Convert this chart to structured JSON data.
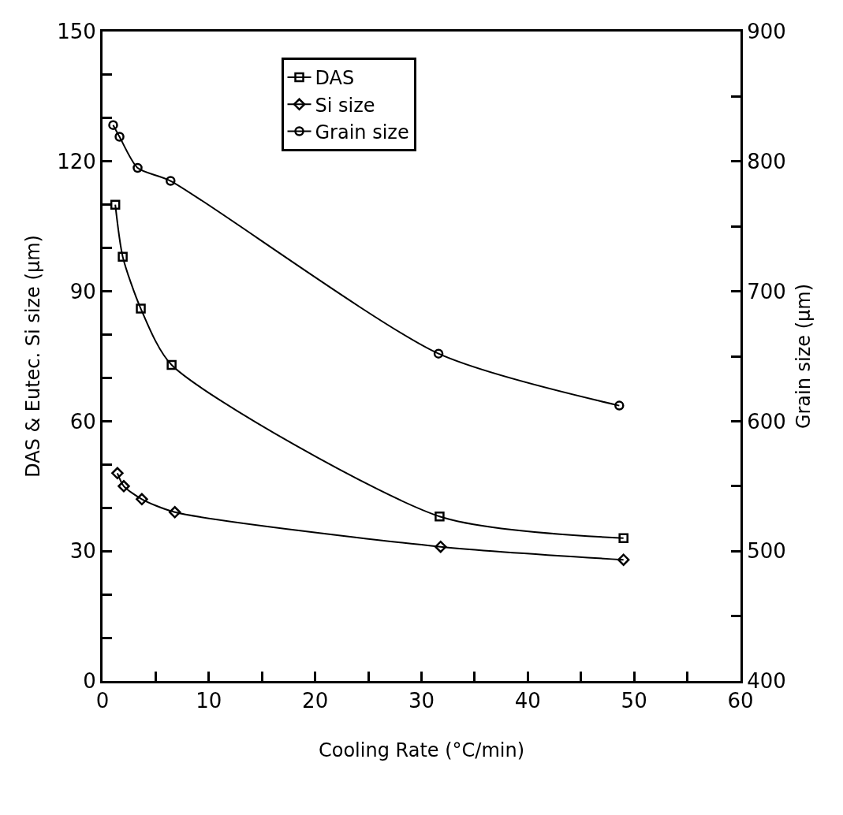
{
  "chart_data": {
    "type": "line",
    "xlabel": "Cooling Rate (°C/min)",
    "ylabel": "DAS & Eutec. Si size (μm)",
    "y2label": "Grain size (μm)",
    "xlim": [
      0,
      60
    ],
    "xticks": [
      0,
      {
        "value": 5,
        "label": null
      },
      10,
      {
        "value": 15,
        "label": null
      },
      20,
      {
        "value": 25,
        "label": null
      },
      30,
      {
        "value": 35,
        "label": null
      },
      40,
      {
        "value": 45,
        "label": null
      },
      50,
      {
        "value": 55,
        "label": null
      },
      60
    ],
    "ylim": [
      0,
      150
    ],
    "yticks": [
      0,
      {
        "value": 10,
        "label": null
      },
      {
        "value": 20,
        "label": null
      },
      30,
      {
        "value": 40,
        "label": null
      },
      {
        "value": 50,
        "label": null
      },
      60,
      {
        "value": 70,
        "label": null
      },
      {
        "value": 80,
        "label": null
      },
      90,
      {
        "value": 100,
        "label": null
      },
      {
        "value": 110,
        "label": null
      },
      120,
      {
        "value": 130,
        "label": null
      },
      {
        "value": 140,
        "label": null
      },
      150
    ],
    "y2lim": [
      400,
      900
    ],
    "y2ticks": [
      400,
      {
        "value": 450,
        "label": null
      },
      500,
      {
        "value": 550,
        "label": null
      },
      600,
      {
        "value": 650,
        "label": null
      },
      700,
      {
        "value": 750,
        "label": null
      },
      800,
      {
        "value": 850,
        "label": null
      },
      900
    ],
    "legend": "top",
    "line_style": "solid",
    "series": [
      {
        "name": "DAS",
        "color": "#000000",
        "marker": "square",
        "x": [
          1.2,
          1.9,
          3.6,
          6.5,
          31.7,
          49.0
        ],
        "values": [
          110,
          98,
          86,
          73,
          38,
          33
        ]
      },
      {
        "name": "Si size",
        "color": "#000000",
        "marker": "diamond",
        "x": [
          1.4,
          2.0,
          3.7,
          6.8,
          31.8,
          49.0
        ],
        "values": [
          48,
          45,
          42,
          39,
          31,
          28
        ]
      },
      {
        "name": "Grain size",
        "color": "#000000",
        "marker": "circle",
        "axis": "y2",
        "x": [
          1.0,
          1.6,
          3.3,
          6.4,
          31.6,
          48.6
        ],
        "values": [
          828,
          819,
          795,
          785,
          652,
          612
        ]
      }
    ]
  }
}
